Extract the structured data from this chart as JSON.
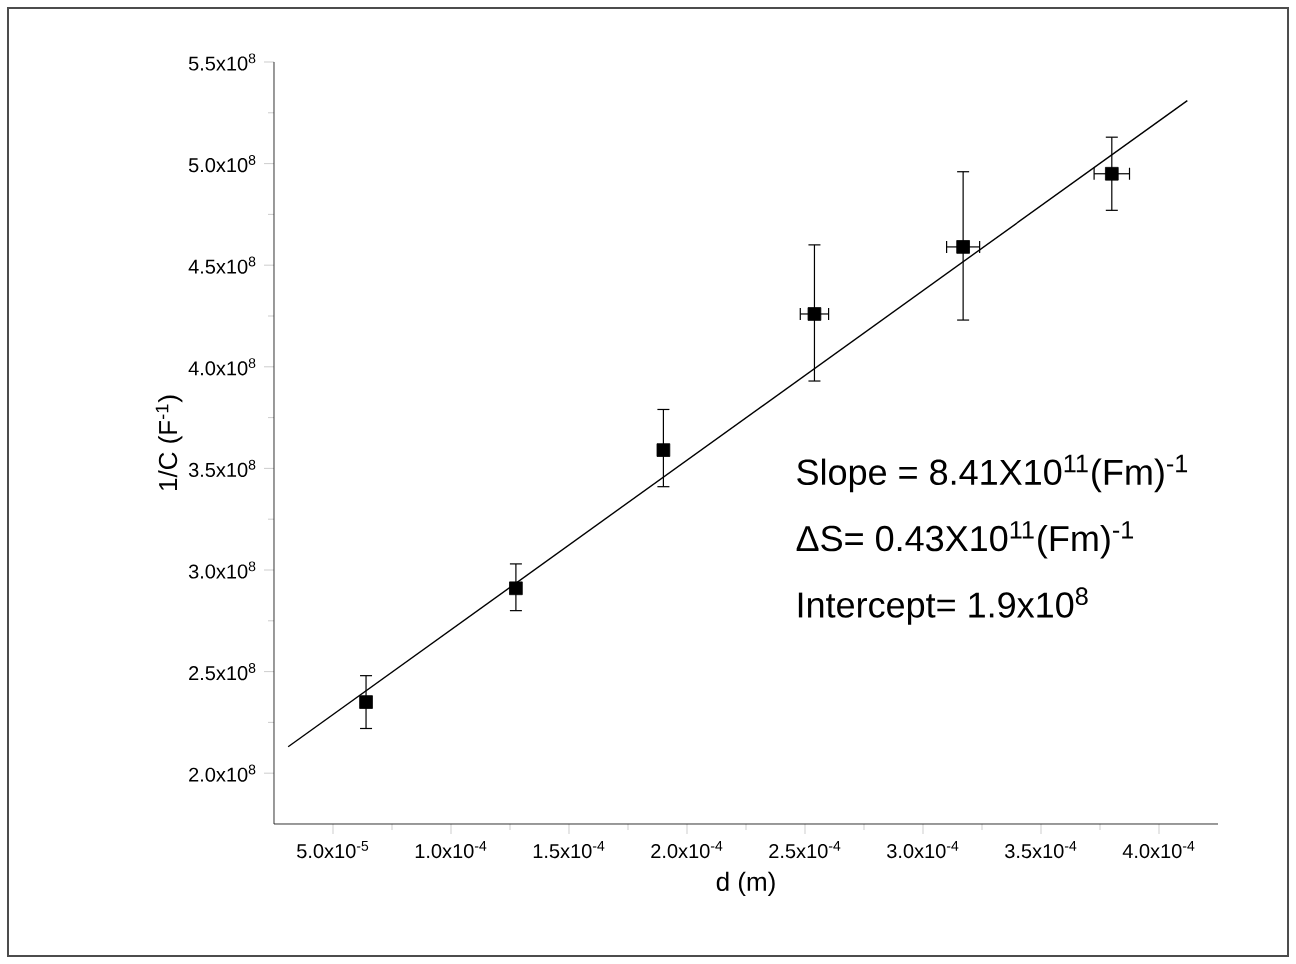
{
  "chart_data": {
    "type": "scatter",
    "xlabel": "d (m)",
    "ylabel": "1/C (F$^{-1}$)",
    "xlim": [
      2.5e-05,
      0.000425
    ],
    "ylim": [
      175000000.0,
      550000000.0
    ],
    "xticks": [
      {
        "value": 5e-05,
        "label": "5.0x10$^{-5}$"
      },
      {
        "value": 0.0001,
        "label": "1.0x10$^{-4}$"
      },
      {
        "value": 0.00015,
        "label": "1.5x10$^{-4}$"
      },
      {
        "value": 0.0002,
        "label": "2.0x10$^{-4}$"
      },
      {
        "value": 0.00025,
        "label": "2.5x10$^{-4}$"
      },
      {
        "value": 0.0003,
        "label": "3.0x10$^{-4}$"
      },
      {
        "value": 0.00035,
        "label": "3.5x10$^{-4}$"
      },
      {
        "value": 0.0004,
        "label": "4.0x10$^{-4}$"
      }
    ],
    "yticks": [
      {
        "value": 200000000.0,
        "label": "2.0x10$^{8}$"
      },
      {
        "value": 250000000.0,
        "label": "2.5x10$^{8}$"
      },
      {
        "value": 300000000.0,
        "label": "3.0x10$^{8}$"
      },
      {
        "value": 350000000.0,
        "label": "3.5x10$^{8}$"
      },
      {
        "value": 400000000.0,
        "label": "4.0x10$^{8}$"
      },
      {
        "value": 450000000.0,
        "label": "4.5x10$^{8}$"
      },
      {
        "value": 500000000.0,
        "label": "5.0x10$^{8}$"
      },
      {
        "value": 550000000.0,
        "label": "5.5x10$^{8}$"
      }
    ],
    "grid": false,
    "series": [
      {
        "color": "#000000",
        "marker": "square",
        "x": [
          6.4e-05,
          0.0001275,
          0.00019,
          0.000254,
          0.000317,
          0.00038
        ],
        "values": [
          235000000.0,
          291000000.0,
          359000000.0,
          426000000.0,
          459000000.0,
          495000000.0
        ],
        "errors": [
          [
            222000000.0,
            248000000.0
          ],
          [
            280000000.0,
            303000000.0
          ],
          [
            341000000.0,
            379000000.0
          ],
          [
            393000000.0,
            460000000.0
          ],
          [
            423000000.0,
            496000000.0
          ],
          [
            477000000.0,
            513000000.0
          ]
        ],
        "xerrors": [
          null,
          null,
          null,
          6e-06,
          7e-06,
          7.5e-06
        ]
      },
      {
        "type": "line",
        "color": "#000000",
        "marker": "none",
        "line_style": "solid",
        "x": [
          3.1e-05,
          0.000412
        ],
        "values": [
          213000000.0,
          531000000.0
        ]
      }
    ],
    "annotations": [
      "Slope = 8.41X10$^{11}$(Fm)$^{-1}$",
      "ΔS= 0.43X10$^{11}$(Fm)$^{-1}$",
      "Intercept= 1.9x10$^{8}$"
    ]
  }
}
